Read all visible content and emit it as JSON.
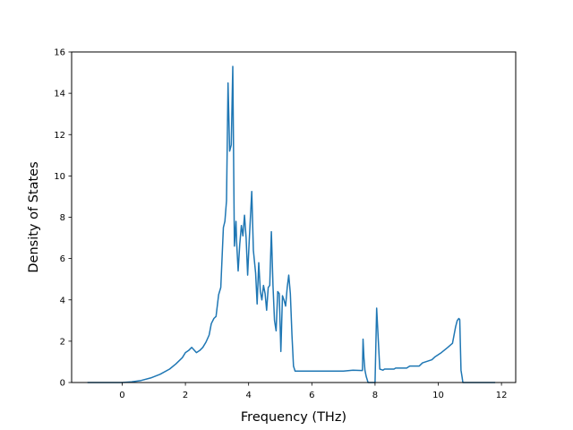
{
  "chart_data": {
    "type": "line",
    "title": "",
    "xlabel": "Frequency (THz)",
    "ylabel": "Density of States",
    "xlim": [
      -1.6,
      12.45
    ],
    "ylim": [
      0,
      16
    ],
    "xticks": [
      0,
      2,
      4,
      6,
      8,
      10,
      12
    ],
    "yticks": [
      0,
      2,
      4,
      6,
      8,
      10,
      12,
      14,
      16
    ],
    "grid": false,
    "legend": "none",
    "series": [
      {
        "color": "#1f77b4",
        "x": [
          -1.1,
          0.0,
          0.3,
          0.6,
          0.9,
          1.2,
          1.5,
          1.7,
          1.9,
          2.0,
          2.1,
          2.2,
          2.35,
          2.45,
          2.55,
          2.65,
          2.75,
          2.82,
          2.9,
          2.97,
          3.05,
          3.12,
          3.2,
          3.25,
          3.3,
          3.35,
          3.4,
          3.45,
          3.5,
          3.55,
          3.6,
          3.62,
          3.67,
          3.72,
          3.77,
          3.82,
          3.87,
          3.92,
          3.97,
          4.02,
          4.1,
          4.15,
          4.22,
          4.27,
          4.32,
          4.37,
          4.42,
          4.47,
          4.52,
          4.57,
          4.62,
          4.67,
          4.72,
          4.77,
          4.82,
          4.87,
          4.92,
          4.97,
          5.02,
          5.07,
          5.12,
          5.17,
          5.22,
          5.27,
          5.32,
          5.37,
          5.42,
          5.47,
          5.52,
          5.57,
          5.62,
          5.67,
          5.72,
          5.77,
          5.82,
          5.87,
          6.0,
          6.5,
          7.0,
          7.3,
          7.6,
          7.62,
          7.65,
          7.68,
          7.72,
          7.78,
          8.0,
          8.05,
          8.15,
          8.25,
          8.3,
          8.6,
          8.65,
          9.0,
          9.1,
          9.4,
          9.5,
          9.8,
          9.9,
          10.1,
          10.3,
          10.45,
          10.55,
          10.6,
          10.65,
          10.68,
          10.72,
          10.75,
          10.78,
          10.85,
          11.8
        ],
        "y": [
          0.0,
          0.0,
          0.03,
          0.1,
          0.22,
          0.4,
          0.65,
          0.9,
          1.2,
          1.45,
          1.55,
          1.7,
          1.45,
          1.55,
          1.7,
          1.95,
          2.3,
          2.85,
          3.1,
          3.2,
          4.25,
          4.6,
          7.5,
          7.8,
          8.8,
          14.5,
          11.2,
          11.5,
          15.3,
          6.6,
          7.8,
          6.8,
          5.4,
          6.7,
          7.6,
          7.1,
          8.1,
          7.0,
          5.2,
          6.9,
          9.25,
          6.4,
          5.3,
          3.8,
          5.8,
          4.4,
          4.0,
          4.7,
          4.3,
          3.5,
          4.6,
          4.7,
          7.3,
          4.7,
          3.0,
          2.5,
          4.4,
          4.3,
          1.5,
          4.2,
          4.0,
          3.7,
          4.6,
          5.2,
          4.3,
          2.3,
          0.8,
          0.55,
          0.55,
          0.55,
          0.55,
          0.55,
          0.55,
          0.55,
          0.55,
          0.55,
          0.55,
          0.55,
          0.55,
          0.6,
          0.58,
          2.1,
          1.2,
          0.6,
          0.3,
          0.0,
          0.0,
          3.6,
          0.65,
          0.6,
          0.65,
          0.65,
          0.7,
          0.7,
          0.8,
          0.8,
          0.95,
          1.1,
          1.25,
          1.45,
          1.7,
          1.9,
          2.7,
          3.0,
          3.1,
          3.05,
          0.6,
          0.3,
          0.0,
          0.0,
          0.0
        ]
      }
    ]
  }
}
